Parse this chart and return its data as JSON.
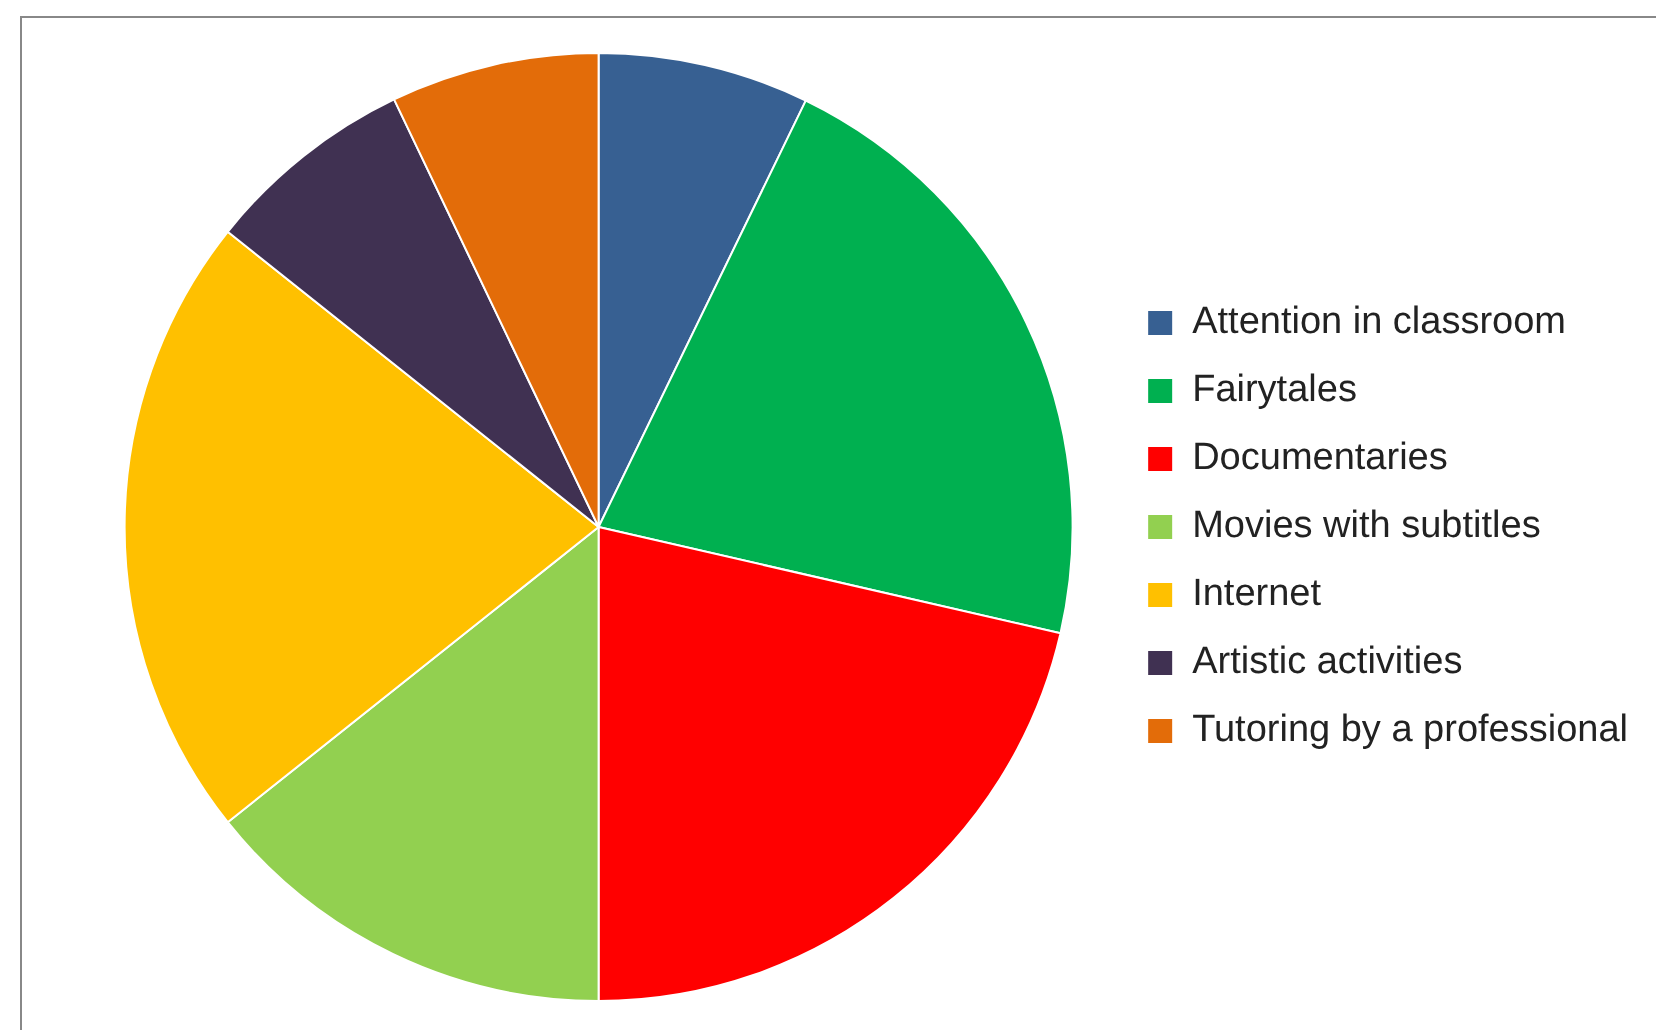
{
  "chart_data": {
    "type": "pie",
    "categories": [
      "Attention in classroom",
      "Fairytales",
      "Documentaries",
      "Movies with subtitles",
      "Internet",
      "Artistic activities",
      "Tutoring by a professional"
    ],
    "values": [
      7.2,
      21.4,
      21.4,
      14.3,
      21.4,
      7.2,
      7.1
    ],
    "colors": [
      "#376092",
      "#00b050",
      "#ff0000",
      "#92d050",
      "#ffc000",
      "#403152",
      "#e36c09"
    ],
    "legend": "right"
  }
}
